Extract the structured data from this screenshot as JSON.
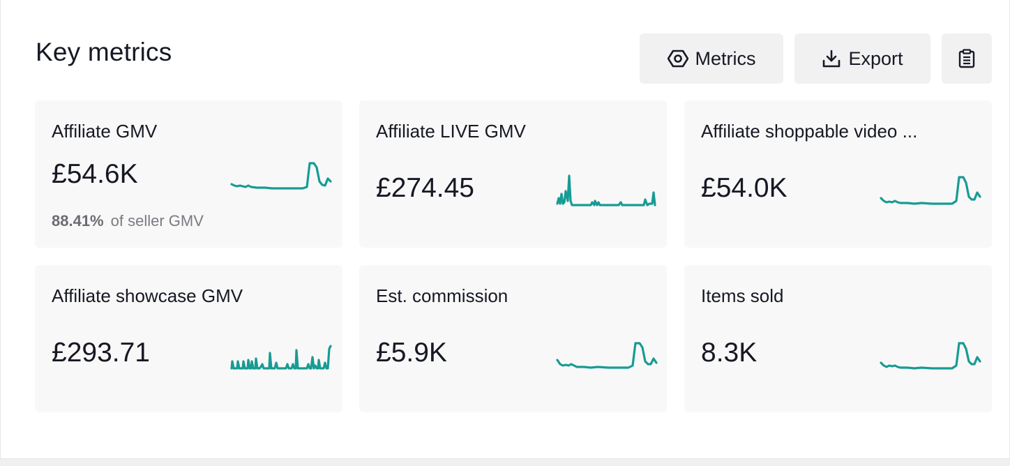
{
  "header": {
    "title": "Key metrics",
    "metrics_label": "Metrics",
    "export_label": "Export"
  },
  "accent_color": "#179b94",
  "cards": [
    {
      "label": "Affiliate GMV",
      "value": "£54.6K",
      "sub_pct": "88.41%",
      "sub_text": "of seller GMV"
    },
    {
      "label": "Affiliate LIVE GMV",
      "value": "£274.45"
    },
    {
      "label": "Affiliate shoppable video ...",
      "value": "£54.0K"
    },
    {
      "label": "Affiliate showcase GMV",
      "value": "£293.71"
    },
    {
      "label": "Est. commission",
      "value": "£5.9K"
    },
    {
      "label": "Items sold",
      "value": "8.3K"
    }
  ]
}
